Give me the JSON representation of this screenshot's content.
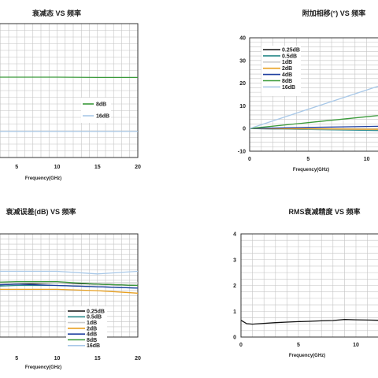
{
  "chart_data": [
    {
      "id": "p1",
      "type": "line",
      "title": "衰减态 VS 频率",
      "xlabel": "Frequency(GHz)",
      "ylabel": "",
      "xlim": [
        0,
        20
      ],
      "ylim": [
        -20,
        0
      ],
      "x_ticks": [
        5,
        10,
        15,
        20
      ],
      "y_ticks": [],
      "legend_position": "center",
      "grid": true,
      "series": [
        {
          "name": "8dB",
          "color": "#3a9a3a",
          "x": [
            0,
            5,
            10,
            15,
            20
          ],
          "y": [
            -8.0,
            -8.0,
            -8.0,
            -8.05,
            -8.05
          ]
        },
        {
          "name": "16dB",
          "color": "#a8c8e8",
          "x": [
            0,
            5,
            10,
            15,
            20
          ],
          "y": [
            -16.1,
            -16.1,
            -16.1,
            -16.1,
            -16.1
          ]
        }
      ]
    },
    {
      "id": "p2",
      "type": "line",
      "title": "附加相移(°) VS 频率",
      "xlabel": "Frequency(GHz)",
      "ylabel": "",
      "xlim": [
        0,
        15
      ],
      "ylim": [
        -10,
        40
      ],
      "x_ticks": [
        0,
        5,
        10
      ],
      "x_tick_labels": [
        "0",
        "5",
        "10"
      ],
      "y_ticks": [
        -10,
        0,
        10,
        20,
        30,
        40
      ],
      "legend_position": "top-left",
      "grid": true,
      "series": [
        {
          "name": "0.25dB",
          "color": "#111111",
          "x": [
            0,
            5,
            10,
            15
          ],
          "y": [
            0,
            -0.3,
            -0.5,
            -0.7
          ]
        },
        {
          "name": "0.5dB",
          "color": "#2a8a8a",
          "x": [
            0,
            5,
            10,
            15
          ],
          "y": [
            0,
            -0.4,
            -0.8,
            -1.2
          ]
        },
        {
          "name": "1dB",
          "color": "#cccccc",
          "x": [
            0,
            5,
            10,
            15
          ],
          "y": [
            0,
            -0.2,
            -0.4,
            -0.5
          ]
        },
        {
          "name": "2dB",
          "color": "#e8a020",
          "x": [
            0,
            5,
            10,
            15
          ],
          "y": [
            0,
            -0.1,
            -0.3,
            -0.4
          ]
        },
        {
          "name": "4dB",
          "color": "#2040a0",
          "x": [
            0,
            5,
            10,
            15
          ],
          "y": [
            0,
            0.5,
            0.9,
            1.3
          ]
        },
        {
          "name": "8dB",
          "color": "#3a9a3a",
          "x": [
            0,
            5,
            10,
            15
          ],
          "y": [
            0,
            2.6,
            5.2,
            7.8
          ]
        },
        {
          "name": "16dB",
          "color": "#a8c8e8",
          "x": [
            0,
            5,
            10,
            15
          ],
          "y": [
            0,
            8.5,
            17.0,
            25.5
          ]
        }
      ]
    },
    {
      "id": "p3",
      "type": "line",
      "title": "衰减误差(dB)  VS  频率",
      "xlabel": "Frequency(GHz)",
      "ylabel": "",
      "xlim": [
        0,
        20
      ],
      "ylim": [
        -2,
        2
      ],
      "x_ticks": [
        5,
        10,
        15,
        20
      ],
      "y_ticks": [],
      "legend_position": "bottom-right",
      "grid": true,
      "series": [
        {
          "name": "0.25dB",
          "color": "#111111",
          "x": [
            0,
            5,
            10,
            15,
            20
          ],
          "y": [
            0.0,
            0.05,
            0.1,
            0.05,
            0.0
          ]
        },
        {
          "name": "0.5dB",
          "color": "#2a8a8a",
          "x": [
            0,
            5,
            10,
            15,
            20
          ],
          "y": [
            -0.05,
            0.0,
            0.0,
            -0.05,
            -0.1
          ]
        },
        {
          "name": "1dB",
          "color": "#cccccc",
          "x": [
            0,
            5,
            10,
            15,
            20
          ],
          "y": [
            0.1,
            0.1,
            0.1,
            0.1,
            0.1
          ]
        },
        {
          "name": "2dB",
          "color": "#e8a020",
          "x": [
            0,
            5,
            10,
            15,
            20
          ],
          "y": [
            -0.15,
            -0.15,
            -0.15,
            -0.2,
            -0.3
          ]
        },
        {
          "name": "4dB",
          "color": "#2040a0",
          "x": [
            0,
            5,
            10,
            15,
            20
          ],
          "y": [
            0.0,
            0.05,
            0.0,
            -0.05,
            -0.1
          ]
        },
        {
          "name": "8dB",
          "color": "#3a9a3a",
          "x": [
            0,
            5,
            10,
            15,
            20
          ],
          "y": [
            0.1,
            0.15,
            0.15,
            0.05,
            0.0
          ]
        },
        {
          "name": "16dB",
          "color": "#a8c8e8",
          "x": [
            0,
            5,
            10,
            15,
            20
          ],
          "y": [
            0.55,
            0.55,
            0.55,
            0.45,
            0.55
          ]
        }
      ]
    },
    {
      "id": "p4",
      "type": "line",
      "title": "RMS衰减精度 VS 频率",
      "xlabel": "Frequency(GHz)",
      "ylabel": "",
      "xlim": [
        0,
        15
      ],
      "ylim": [
        0,
        4
      ],
      "x_ticks": [
        0,
        5,
        10
      ],
      "y_ticks": [
        0,
        1,
        2,
        3,
        4
      ],
      "legend_position": "none",
      "grid": true,
      "series": [
        {
          "name": "",
          "color": "#111111",
          "x": [
            0,
            0.5,
            1,
            2,
            3,
            4,
            5,
            6,
            7,
            8,
            9,
            10,
            11,
            12,
            13,
            14,
            15
          ],
          "y": [
            0.65,
            0.52,
            0.5,
            0.53,
            0.56,
            0.58,
            0.6,
            0.61,
            0.63,
            0.64,
            0.68,
            0.67,
            0.66,
            0.65,
            0.64,
            0.62,
            0.6
          ]
        }
      ]
    }
  ]
}
